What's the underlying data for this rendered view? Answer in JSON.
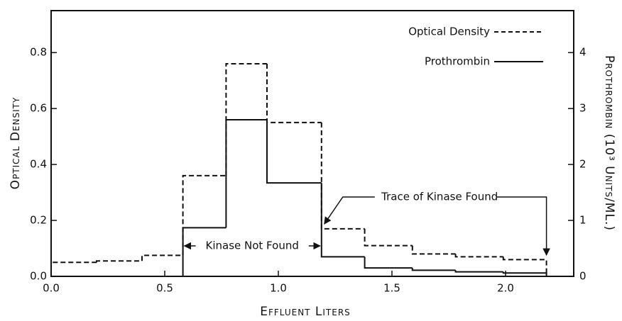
{
  "chart_data": {
    "type": "histogram",
    "x_label": "Effluent Liters",
    "y_label": "Optical Density",
    "y2_label": "Prothrombin (10³ Units/ML.)",
    "bins": [
      0.0,
      0.2,
      0.4,
      0.58,
      0.77,
      0.95,
      1.19,
      1.38,
      1.59,
      1.78,
      1.99,
      2.18
    ],
    "series": [
      {
        "name": "Optical Density",
        "color": "#111111",
        "dash": true,
        "values": [
          0.05,
          0.055,
          0.075,
          0.36,
          0.76,
          0.55,
          0.17,
          0.11,
          0.08,
          0.07,
          0.06
        ]
      },
      {
        "name": "Prothrombin",
        "color": "#111111",
        "dash": false,
        "axis": "y2",
        "values": [
          null,
          null,
          null,
          0.87,
          2.8,
          1.67,
          0.35,
          0.15,
          0.11,
          0.08,
          0.06
        ]
      }
    ],
    "xlim": [
      0,
      2.3
    ],
    "xticks": [
      {
        "value": 0,
        "label": "0.0"
      },
      0.5,
      {
        "value": 1,
        "label": "1.0"
      },
      1.5,
      {
        "value": 2,
        "label": "2.0"
      }
    ],
    "ylim": [
      0,
      0.95
    ],
    "yticks": [
      {
        "value": 0,
        "label": "0.0"
      },
      0.2,
      0.4,
      0.6,
      0.8
    ],
    "y2lim": [
      0,
      4.75
    ],
    "y2ticks": [
      0,
      1,
      2,
      3,
      4
    ],
    "annotations": [
      "Kinase Not Found",
      "Trace of Kinase Found"
    ]
  }
}
